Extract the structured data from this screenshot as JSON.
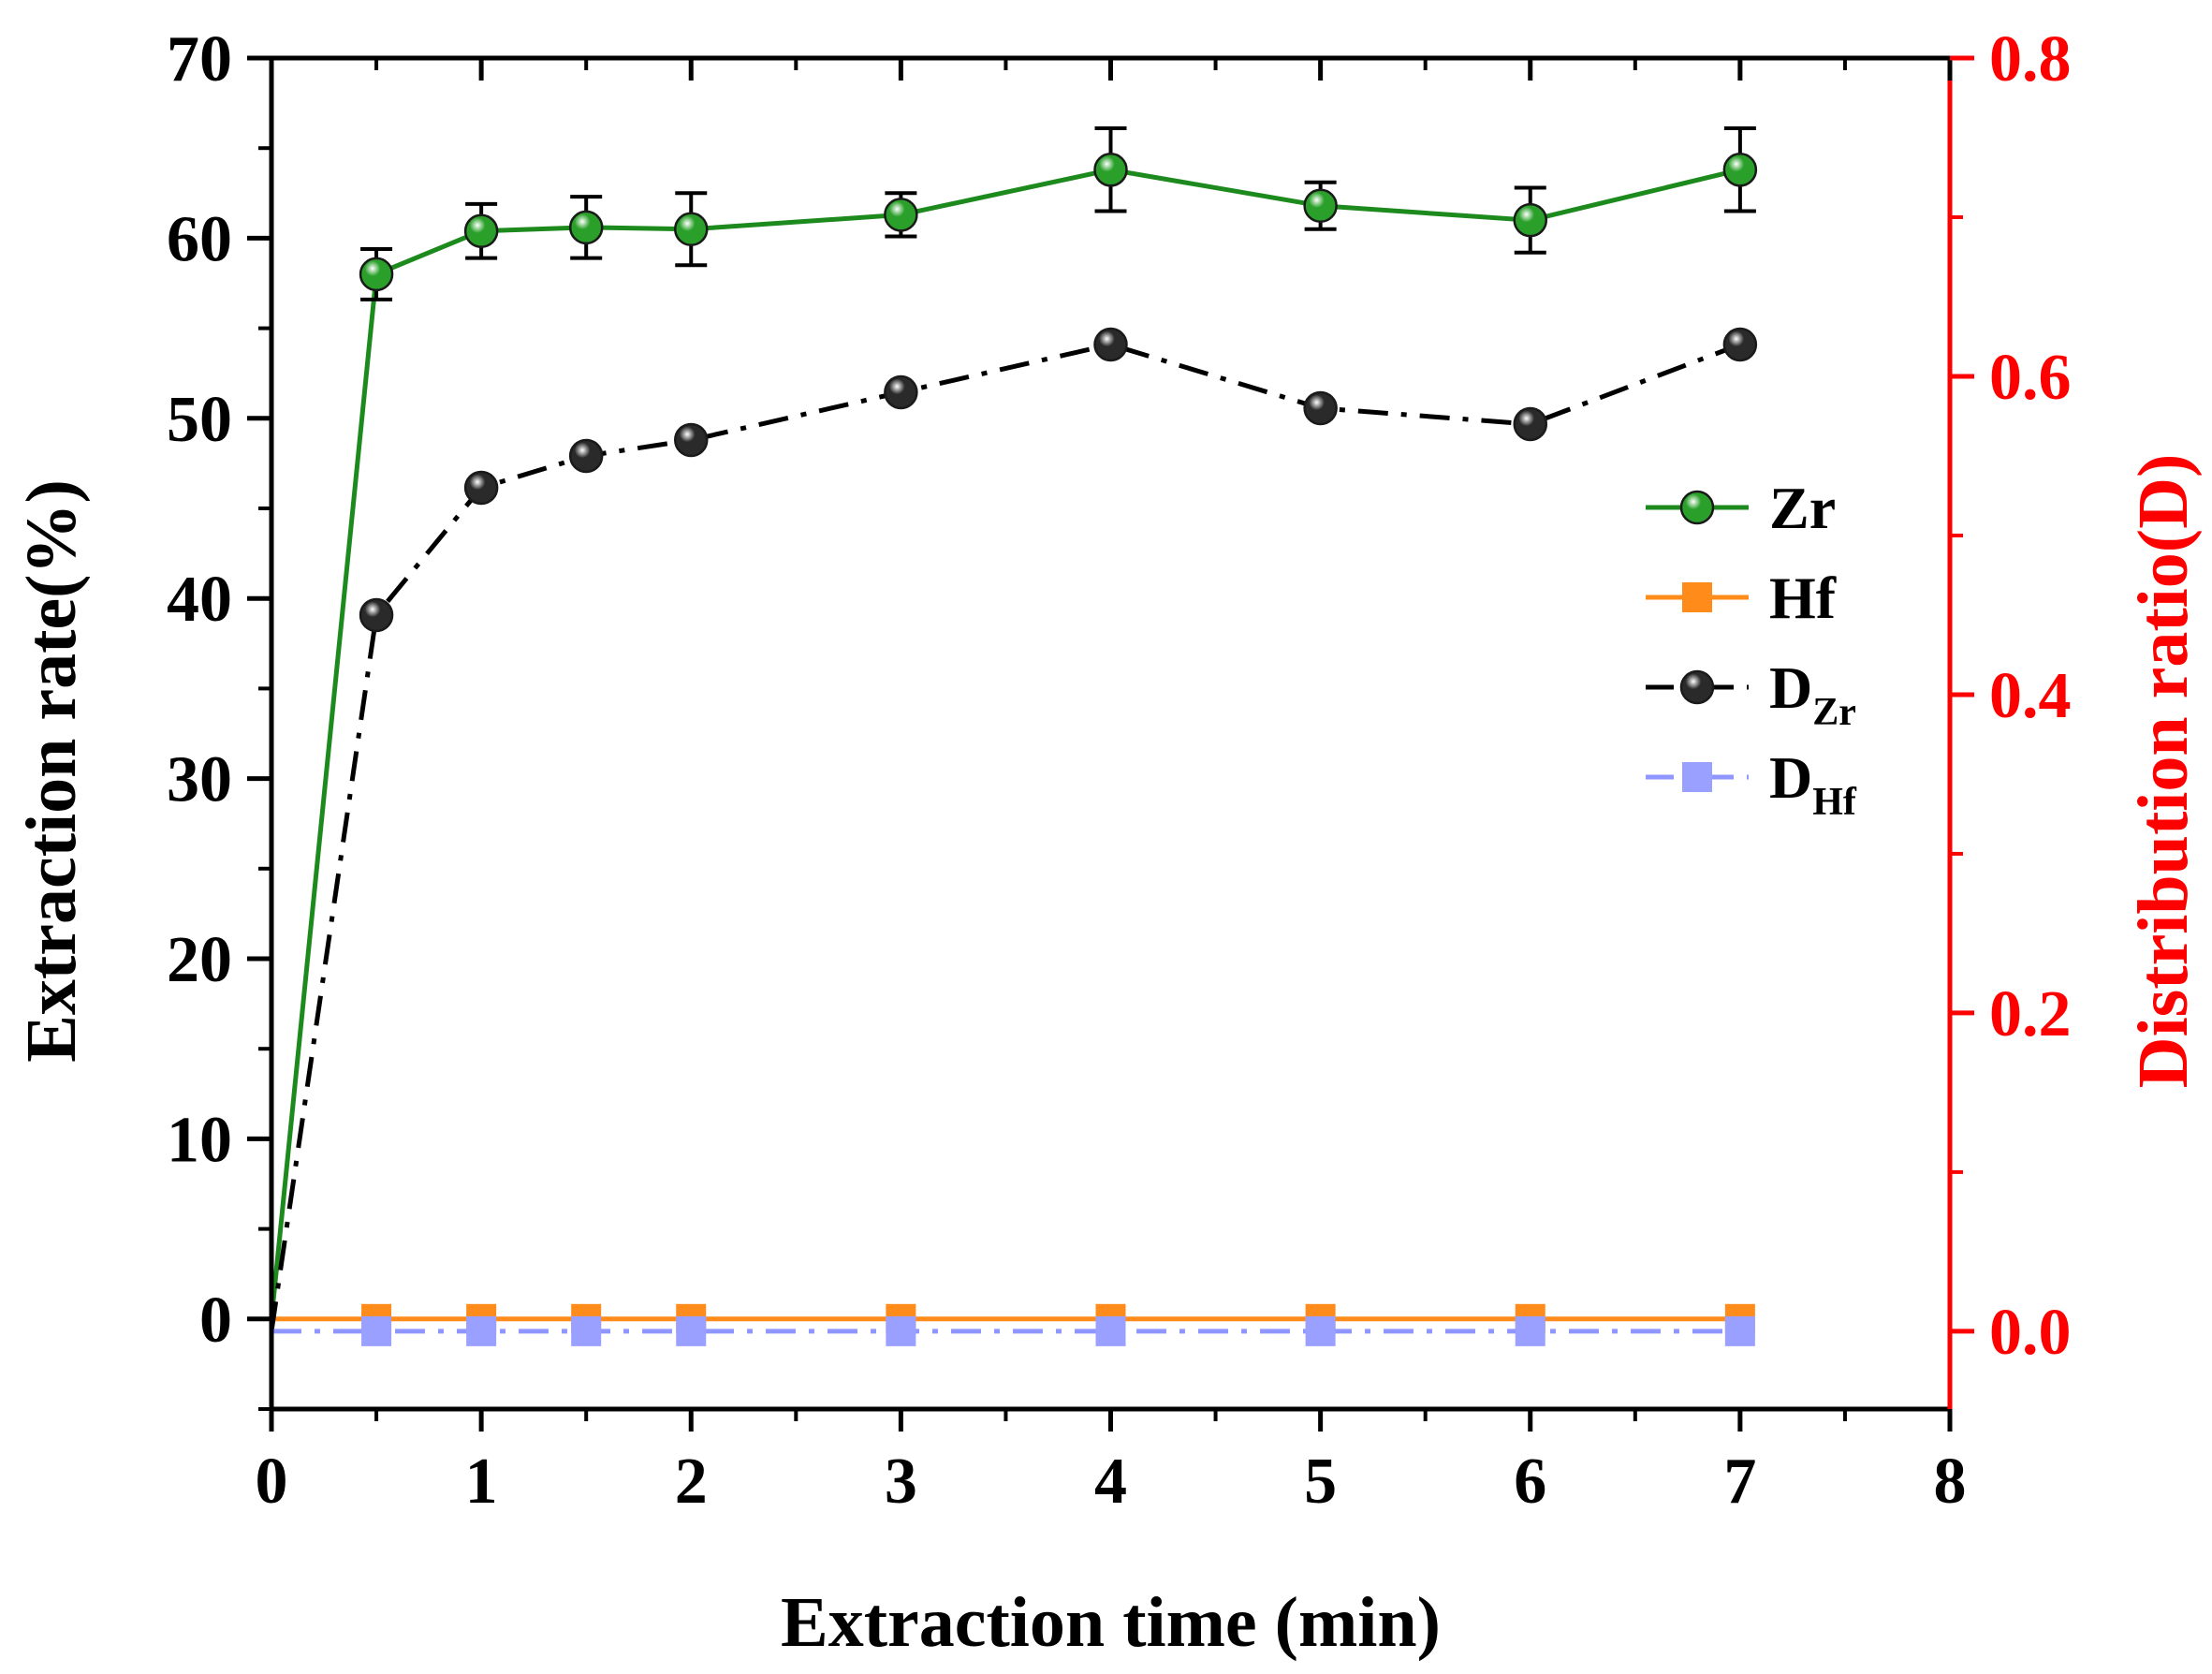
{
  "chart_data": {
    "type": "line",
    "title": "",
    "xlabel": "Extraction time (min)",
    "ylabel": "Extraction rate(%)",
    "y2label": "Distribution ratio(D)",
    "xlim": [
      0,
      8
    ],
    "ylim": [
      -5,
      70
    ],
    "y2lim": [
      -0.0489,
      0.8
    ],
    "x_ticks": [
      "0",
      "1",
      "2",
      "3",
      "4",
      "5",
      "6",
      "7",
      "8"
    ],
    "y_ticks": [
      "0",
      "10",
      "20",
      "30",
      "40",
      "50",
      "60",
      "70"
    ],
    "y2_ticks": [
      "0.0",
      "0.2",
      "0.4",
      "0.6",
      "0.8"
    ],
    "x": [
      0,
      0.5,
      1,
      1.5,
      2,
      3,
      4,
      5,
      6,
      7
    ],
    "grid": false,
    "legend_position": "right",
    "series": [
      {
        "name": "Zr",
        "sub": "",
        "axis": "left",
        "marker": "sphere",
        "line_style": "solid",
        "color": "#1d8a1d",
        "marker_fill": "#2aa02a",
        "values": [
          0,
          58.0,
          60.4,
          60.6,
          60.5,
          61.3,
          63.8,
          61.8,
          61.0,
          63.8
        ],
        "errors": [
          0,
          1.4,
          1.5,
          1.7,
          2.0,
          1.2,
          2.3,
          1.3,
          1.8,
          2.3
        ]
      },
      {
        "name": "Hf",
        "sub": "",
        "axis": "left",
        "marker": "square",
        "line_style": "solid",
        "color": "#ff8c1a",
        "marker_fill": "#ff8c1a",
        "values": [
          0,
          0,
          0,
          0,
          0,
          0,
          0,
          0,
          0,
          0
        ]
      },
      {
        "name": "D",
        "sub": "Zr",
        "axis": "right",
        "marker": "sphere",
        "line_style": "dashdot",
        "color": "#000000",
        "marker_fill": "#2a2a2a",
        "values": [
          0,
          0.45,
          0.53,
          0.55,
          0.56,
          0.59,
          0.62,
          0.58,
          0.57,
          0.62
        ]
      },
      {
        "name": "D",
        "sub": "Hf",
        "axis": "right",
        "marker": "square",
        "line_style": "dashdot",
        "color": "#8f96ff",
        "marker_fill": "#9aa0ff",
        "values": [
          0,
          0,
          0,
          0,
          0,
          0,
          0,
          0,
          0,
          0
        ]
      }
    ],
    "colors": {
      "axis": "#000000",
      "right_axis": "#ff0000"
    }
  }
}
